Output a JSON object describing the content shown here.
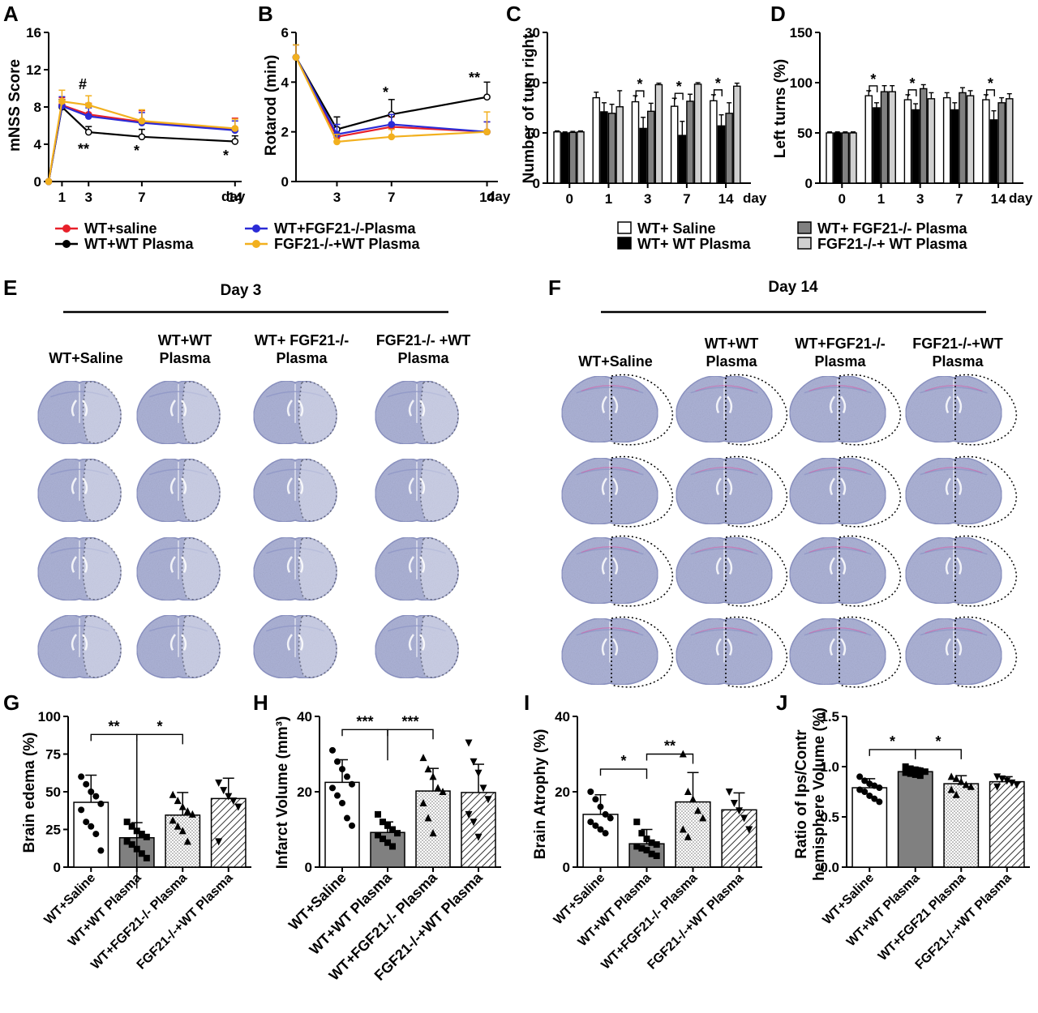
{
  "colors": {
    "saline": "#e8202a",
    "wt_plasma": "#000000",
    "fgf21ko_plasma": "#2b2bd6",
    "ko_wt_plasma": "#f2b01e",
    "tissue": "#aeb4d8",
    "tissue_dark": "#8f96c6",
    "gray_bar": "#808080",
    "light_bar": "#d0d0d0"
  },
  "panels": {
    "A": {
      "label": "A",
      "ylabel": "mNSS Score",
      "xunit": "day",
      "xticks": [
        "1",
        "3",
        "7",
        "14"
      ],
      "yticks": [
        "0",
        "4",
        "8",
        "12",
        "16"
      ],
      "stars": [
        "#",
        "**",
        "*",
        "*"
      ]
    },
    "B": {
      "label": "B",
      "ylabel": "Rotarod (min)",
      "xunit": "day",
      "xticks": [
        "3",
        "7",
        "14"
      ],
      "yticks": [
        "0",
        "2",
        "4",
        "6"
      ],
      "stars": [
        "*",
        "**"
      ]
    },
    "C": {
      "label": "C",
      "ylabel": "Number of turn right",
      "xunit": "day",
      "xticks": [
        "0",
        "1",
        "3",
        "7",
        "14"
      ],
      "yticks": [
        "0",
        "10",
        "20",
        "30"
      ],
      "stars": [
        "*",
        "*",
        "*"
      ]
    },
    "D": {
      "label": "D",
      "ylabel": "Left turns (%)",
      "xunit": "day",
      "xticks": [
        "0",
        "1",
        "3",
        "7",
        "14"
      ],
      "yticks": [
        "0",
        "50",
        "100",
        "150"
      ],
      "stars": [
        "*",
        "*",
        "*"
      ]
    },
    "E": {
      "label": "E",
      "title": "Day 3",
      "groups": [
        [
          "WT+Saline"
        ],
        [
          "WT+WT",
          "Plasma"
        ],
        [
          "WT+ FGF21-/-",
          "Plasma"
        ],
        [
          "FGF21-/- +WT",
          "Plasma"
        ]
      ]
    },
    "F": {
      "label": "F",
      "title": "Day 14",
      "groups": [
        [
          "WT+Saline"
        ],
        [
          "WT+WT",
          "Plasma"
        ],
        [
          "WT+FGF21-/-",
          "Plasma"
        ],
        [
          "FGF21-/-+WT",
          "Plasma"
        ]
      ]
    },
    "G": {
      "label": "G",
      "ylabel": "Brain edema (%)",
      "yticks": [
        "0",
        "25",
        "50",
        "75",
        "100"
      ],
      "categories": [
        "WT+Saline",
        "WT+WT Plasma",
        "WT+FGF21-/- Plasma",
        "FGF21-/-+WT Plasma"
      ],
      "stars": [
        "**",
        "*"
      ]
    },
    "H": {
      "label": "H",
      "ylabel": "Infarct Volume (mm³)",
      "yticks": [
        "0",
        "20",
        "40"
      ],
      "categories": [
        "WT+Saline",
        "WT+WT Plasma",
        "WT+FGF21-/- Plasma",
        "FGF21-/-+WT Plasma"
      ],
      "stars": [
        "***",
        "***"
      ]
    },
    "I": {
      "label": "I",
      "ylabel": "Brain Atrophy (%)",
      "yticks": [
        "0",
        "20",
        "40"
      ],
      "categories": [
        "WT+Saline",
        "WT+WT Plasma",
        "WT+FGF21-/- Plasma",
        "FGF21-/-+WT Plasma"
      ],
      "stars": [
        "*",
        "**"
      ]
    },
    "J": {
      "label": "J",
      "ylabel": [
        "Ratio of Ips/Contr",
        "hemisphere Volume (%)"
      ],
      "yticks": [
        "0.0",
        "0.5",
        "1.0",
        "1.5"
      ],
      "categories": [
        "WT+Saline",
        "WT+WT Plasma",
        "WT+FGF21 Plasma",
        "FGF21-/-+WT Plasma"
      ],
      "stars": [
        "*",
        "*"
      ]
    }
  },
  "legend_ab": [
    "WT+saline",
    "WT+WT Plasma",
    "WT+FGF21-/-Plasma",
    "FGF21-/-+WT Plasma"
  ],
  "legend_cd": [
    "WT+ Saline",
    "WT+ WT Plasma",
    "WT+ FGF21-/- Plasma",
    "FGF21-/-+ WT Plasma"
  ],
  "chart_data": [
    {
      "panel": "A",
      "type": "line",
      "ylabel": "mNSS Score",
      "xlabel": "day",
      "x": [
        0,
        1,
        3,
        7,
        14
      ],
      "ylim": [
        0,
        16
      ],
      "series": [
        {
          "name": "WT+saline",
          "values": [
            0,
            8.2,
            7.2,
            6.4,
            5.6
          ],
          "err": [
            0,
            0.8,
            1.2,
            1.2,
            1.2
          ]
        },
        {
          "name": "WT+WT Plasma",
          "values": [
            0,
            8.0,
            5.3,
            4.8,
            4.3
          ],
          "err": [
            0,
            0.8,
            0.6,
            0.8,
            0.6
          ]
        },
        {
          "name": "WT+FGF21-/-Plasma",
          "values": [
            0,
            8.1,
            7.0,
            6.3,
            5.5
          ],
          "err": [
            0,
            1.0,
            0.9,
            1.1,
            1.0
          ]
        },
        {
          "name": "FGF21-/-+WT Plasma",
          "values": [
            0,
            8.6,
            8.2,
            6.5,
            5.7
          ],
          "err": [
            0,
            1.2,
            1.0,
            1.2,
            1.0
          ]
        }
      ]
    },
    {
      "panel": "B",
      "type": "line",
      "ylabel": "Rotarod (min)",
      "xlabel": "day",
      "x": [
        0,
        3,
        7,
        14
      ],
      "ylim": [
        0,
        6
      ],
      "series": [
        {
          "name": "WT+saline",
          "values": [
            5.0,
            1.8,
            2.2,
            2.0
          ],
          "err": [
            0.5,
            0.3,
            0.4,
            0.4
          ]
        },
        {
          "name": "WT+WT Plasma",
          "values": [
            5.0,
            2.1,
            2.7,
            3.4
          ],
          "err": [
            0.5,
            0.5,
            0.6,
            0.6
          ]
        },
        {
          "name": "WT+FGF21-/-Plasma",
          "values": [
            5.0,
            1.9,
            2.3,
            2.0
          ],
          "err": [
            0.5,
            0.4,
            0.4,
            0.4
          ]
        },
        {
          "name": "FGF21-/-+WT Plasma",
          "values": [
            5.0,
            1.6,
            1.8,
            2.0
          ],
          "err": [
            0.5,
            0.3,
            0.3,
            0.8
          ]
        }
      ]
    },
    {
      "panel": "C",
      "type": "bar",
      "ylabel": "Number of turn right",
      "xlabel": "day",
      "categories": [
        "0",
        "1",
        "3",
        "7",
        "14"
      ],
      "ylim": [
        0,
        30
      ],
      "series": [
        {
          "name": "WT+ Saline",
          "values": [
            10.2,
            17.0,
            16.2,
            15.3,
            16.4
          ],
          "err": [
            0.2,
            1.1,
            1.2,
            1.6,
            1.2
          ]
        },
        {
          "name": "WT+ WT Plasma",
          "values": [
            10.0,
            14.2,
            10.9,
            9.5,
            11.4
          ],
          "err": [
            0.2,
            1.8,
            2.2,
            2.8,
            2.2
          ]
        },
        {
          "name": "WT+ FGF21-/- Plasma",
          "values": [
            10.1,
            13.9,
            14.3,
            16.3,
            13.9
          ],
          "err": [
            0.2,
            1.8,
            1.6,
            1.4,
            2.1
          ]
        },
        {
          "name": "FGF21-/-+ WT Plasma",
          "values": [
            10.2,
            15.2,
            19.6,
            19.7,
            19.3
          ],
          "err": [
            0.2,
            3.2,
            0.3,
            0.3,
            0.6
          ]
        }
      ]
    },
    {
      "panel": "D",
      "type": "bar",
      "ylabel": "Left turns (%)",
      "xlabel": "day",
      "categories": [
        "0",
        "1",
        "3",
        "7",
        "14"
      ],
      "ylim": [
        0,
        150
      ],
      "series": [
        {
          "name": "WT+ Saline",
          "values": [
            50,
            87,
            83,
            85,
            83
          ],
          "err": [
            1,
            5,
            5,
            5,
            5
          ]
        },
        {
          "name": "WT+ WT Plasma",
          "values": [
            50,
            75,
            73,
            73,
            63
          ],
          "err": [
            1,
            5,
            6,
            7,
            9
          ]
        },
        {
          "name": "WT+ FGF21-/- Plasma",
          "values": [
            50,
            91,
            94,
            90,
            80
          ],
          "err": [
            1,
            6,
            4,
            5,
            5
          ]
        },
        {
          "name": "FGF21-/-+ WT Plasma",
          "values": [
            50,
            91,
            84,
            87,
            84
          ],
          "err": [
            1,
            6,
            6,
            5,
            5
          ]
        }
      ]
    },
    {
      "panel": "G",
      "type": "bar",
      "ylabel": "Brain edema (%)",
      "categories": [
        "WT+Saline",
        "WT+WT Plasma",
        "WT+FGF21-/- Plasma",
        "FGF21-/-+WT Plasma"
      ],
      "values": [
        43,
        19.5,
        34.5,
        45.5
      ],
      "err": [
        18,
        10,
        15,
        13.5
      ],
      "ylim": [
        0,
        100
      ],
      "points": [
        [
          60,
          55,
          50,
          47,
          42,
          38,
          30,
          27,
          22,
          11
        ],
        [
          30,
          27,
          24,
          22,
          20,
          17,
          15,
          12,
          9,
          6
        ],
        [
          48,
          44,
          40,
          37,
          35,
          31,
          27,
          24,
          17
        ],
        [
          56,
          51,
          47,
          44,
          40,
          17
        ]
      ]
    },
    {
      "panel": "H",
      "type": "bar",
      "ylabel": "Infarct Volume (mm³)",
      "categories": [
        "WT+Saline",
        "WT+WT Plasma",
        "WT+FGF21-/- Plasma",
        "FGF21-/-+WT Plasma"
      ],
      "values": [
        22.5,
        9.2,
        20.2,
        19.8
      ],
      "err": [
        6.0,
        2.8,
        6.0,
        7.5
      ],
      "ylim": [
        0,
        40
      ],
      "points": [
        [
          31,
          28,
          26,
          24,
          22,
          21,
          19,
          17,
          13,
          11
        ],
        [
          14,
          12,
          11,
          10,
          9,
          8.5,
          7.5,
          6.5,
          5.5
        ],
        [
          29,
          26,
          24,
          21,
          20,
          17,
          13,
          9
        ],
        [
          33,
          28,
          25,
          21,
          18,
          14,
          12,
          8
        ]
      ]
    },
    {
      "panel": "I",
      "type": "bar",
      "ylabel": "Brain Atrophy (%)",
      "categories": [
        "WT+Saline",
        "WT+WT Plasma",
        "WT+FGF21-/- Plasma",
        "FGF21-/-+WT Plasma"
      ],
      "values": [
        14.0,
        6.2,
        17.3,
        15.2
      ],
      "err": [
        5.2,
        3.8,
        7.8,
        4.5
      ],
      "ylim": [
        0,
        40
      ],
      "points": [
        [
          20,
          18,
          16,
          14,
          13,
          12,
          11,
          10,
          9
        ],
        [
          12,
          9,
          7.5,
          6.5,
          6,
          5.5,
          5,
          4.5,
          3.5,
          3
        ],
        [
          30,
          20,
          18,
          15,
          13,
          10,
          8
        ],
        [
          20,
          17,
          15,
          13,
          10
        ]
      ]
    },
    {
      "panel": "J",
      "type": "bar",
      "ylabel": "Ratio of Ips/Contr hemisphere Volume (%)",
      "categories": [
        "WT+Saline",
        "WT+WT Plasma",
        "WT+FGF21 Plasma",
        "FGF21-/-+WT Plasma"
      ],
      "values": [
        0.79,
        0.95,
        0.83,
        0.85
      ],
      "err": [
        0.09,
        0.04,
        0.08,
        0.05
      ],
      "ylim": [
        0,
        1.5
      ],
      "points": [
        [
          0.9,
          0.86,
          0.83,
          0.81,
          0.79,
          0.77,
          0.75,
          0.71,
          0.68,
          0.65
        ],
        [
          1.0,
          0.98,
          0.97,
          0.96,
          0.95,
          0.94,
          0.93,
          0.92,
          0.91
        ],
        [
          0.9,
          0.88,
          0.85,
          0.82,
          0.8,
          0.77,
          0.72
        ],
        [
          0.9,
          0.88,
          0.86,
          0.84,
          0.82,
          0.8
        ]
      ]
    }
  ]
}
